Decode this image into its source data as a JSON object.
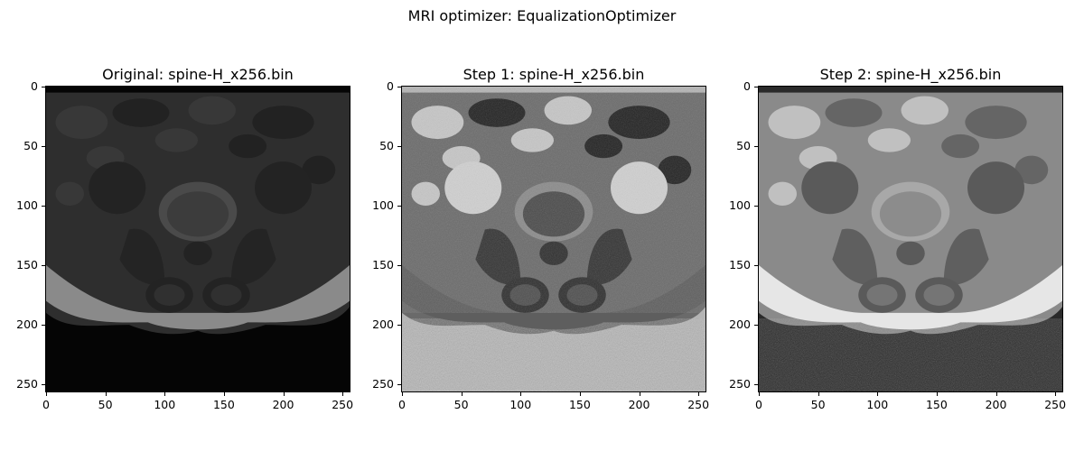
{
  "figure": {
    "suptitle": "MRI optimizer: EqualizationOptimizer"
  },
  "panels": [
    {
      "title": "Original: spine-H_x256.bin",
      "style": "original"
    },
    {
      "title": "Step 1: spine-H_x256.bin",
      "style": "step1"
    },
    {
      "title": "Step 2: spine-H_x256.bin",
      "style": "step2"
    }
  ],
  "axes": {
    "x_ticks": [
      "0",
      "50",
      "100",
      "150",
      "200",
      "250"
    ],
    "y_ticks": [
      "0",
      "50",
      "100",
      "150",
      "200",
      "250"
    ],
    "xlim": [
      0,
      256
    ],
    "ylim": [
      256,
      0
    ]
  },
  "colormap": "gray"
}
